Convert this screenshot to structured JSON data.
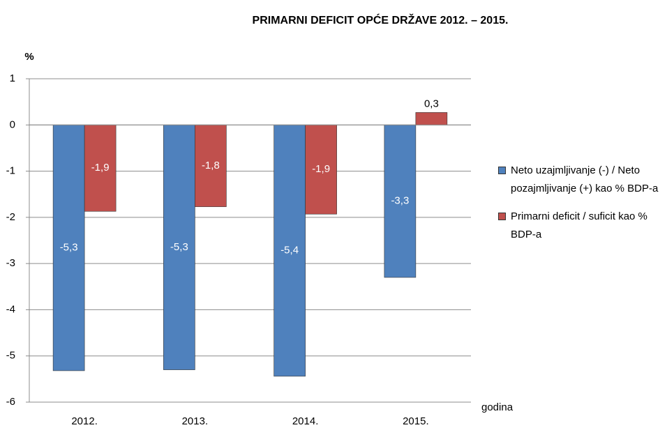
{
  "chart_data": {
    "type": "bar",
    "title": "PRIMARNI DEFICIT OPĆE DRŽAVE 2012. – 2015.",
    "y_label": "%",
    "x_label": "godina",
    "categories": [
      "2012.",
      "2013.",
      "2014.",
      "2015."
    ],
    "series": [
      {
        "name": "Neto uzajmljivanje (-) / Neto pozajmljivanje (+) kao % BDP-a",
        "color": "#4f81bd",
        "values": [
          -5.32,
          -5.3,
          -5.44,
          -3.3
        ],
        "value_labels": [
          "-5,3",
          "-5,3",
          "-5,4",
          "-3,3"
        ]
      },
      {
        "name": "Primarni deficit / suficit kao % BDP-a",
        "color": "#c0504d",
        "values": [
          -1.87,
          -1.77,
          -1.93,
          0.27
        ],
        "value_labels": [
          "-1,9",
          "-1,8",
          "-1,9",
          "0,3"
        ]
      }
    ],
    "ylim": [
      -6,
      1
    ],
    "yticks": [
      1,
      0,
      -1,
      -2,
      -3,
      -4,
      -5,
      -6
    ],
    "grid": true,
    "legend": "right"
  }
}
